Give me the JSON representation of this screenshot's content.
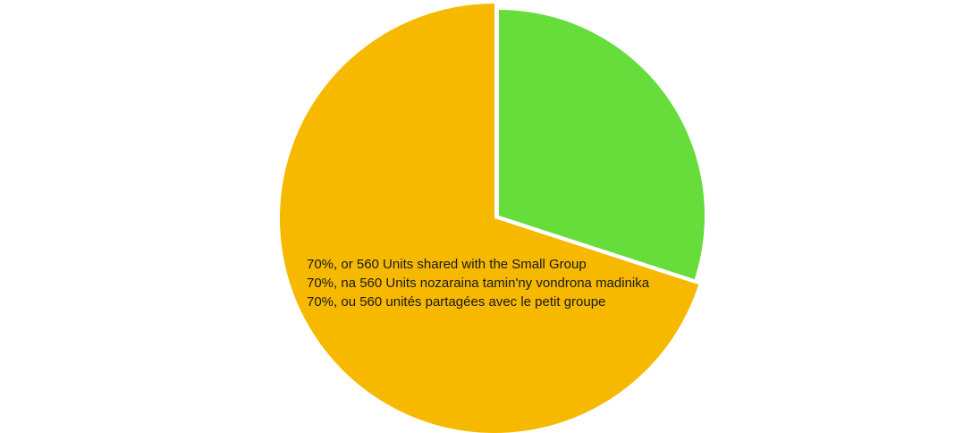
{
  "chart_data": {
    "type": "pie",
    "title": "",
    "slices": [
      {
        "label": "",
        "value": 70,
        "color": "#f6b900"
      },
      {
        "label": "",
        "value": 30,
        "color": "#66dd3a"
      }
    ],
    "annotation": {
      "lines": [
        "70%, or 560 Units shared with the Small Group",
        "70%, na 560 Units nozaraina tamin'ny vondrona madinika",
        "70%, ou 560 unités partagées avec le petit groupe"
      ]
    }
  }
}
